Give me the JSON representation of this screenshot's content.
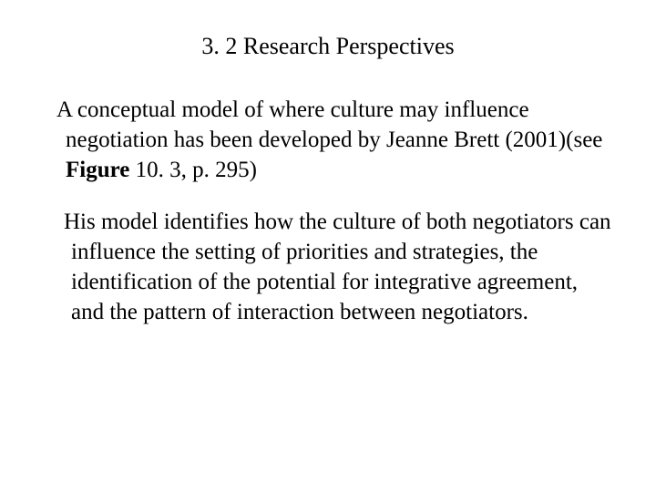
{
  "title": "3. 2 Research Perspectives",
  "p1_a": "A conceptual model of where culture may influence negotiation has been developed by Jeanne Brett (2001)(see ",
  "p1_b": "Figure",
  "p1_c": " 10. 3, p. 295)",
  "p2": "His model identifies how the culture  of both negotiators can influence the setting of priorities and strategies, the identification of the potential for integrative agreement, and the pattern of interaction between negotiators."
}
